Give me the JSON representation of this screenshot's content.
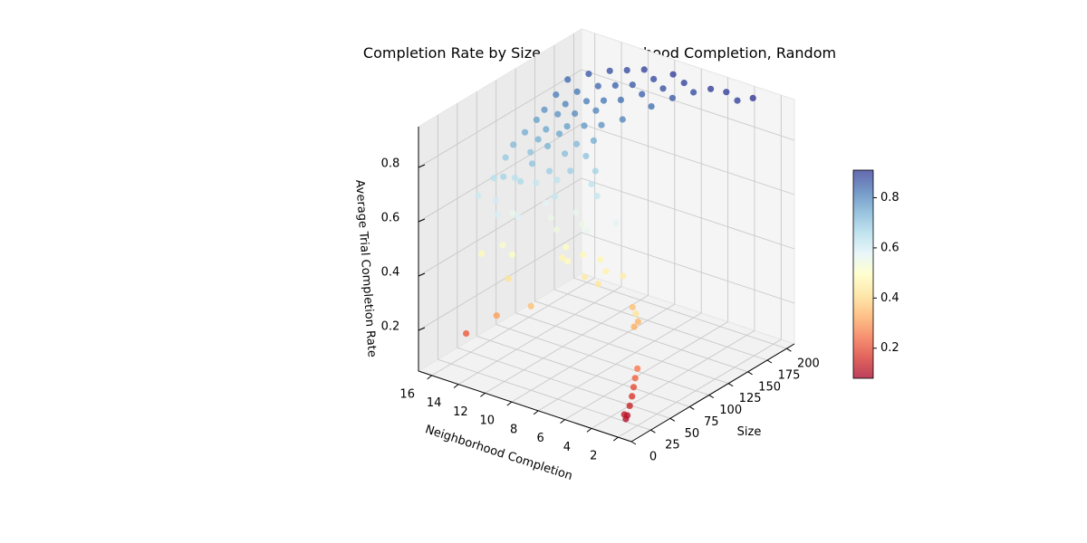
{
  "chart_data": {
    "type": "scatter3d",
    "title": "Completion Rate by Size and Neighborhood Completion, Random",
    "xlabel": "Neighborhood Completion",
    "ylabel": "Size",
    "zlabel": "Average Trial Completion Rate",
    "xlim": [
      1,
      17
    ],
    "ylim": [
      0,
      210
    ],
    "zlim": [
      0.05,
      0.95
    ],
    "x_ticks": [
      2,
      4,
      6,
      8,
      10,
      12,
      14,
      16
    ],
    "y_ticks": [
      0,
      25,
      50,
      75,
      100,
      125,
      150,
      175,
      200
    ],
    "z_ticks": [
      0.2,
      0.4,
      0.6,
      0.8
    ],
    "x_tick_labels": [
      "2",
      "4",
      "6",
      "8",
      "10",
      "12",
      "14",
      "16"
    ],
    "y_tick_labels": [
      "0",
      "25",
      "50",
      "75",
      "100",
      "125",
      "150",
      "175",
      "200"
    ],
    "z_tick_labels": [
      "0.2",
      "0.4",
      "0.6",
      "0.8"
    ],
    "colormap": "RdYlBu",
    "colorbar": {
      "range": [
        0.08,
        0.91
      ],
      "ticks": [
        0.2,
        0.4,
        0.6,
        0.8
      ],
      "tick_labels": [
        "0.2",
        "0.4",
        "0.6",
        "0.8"
      ]
    },
    "grid": true,
    "points": [
      {
        "x": 2,
        "y": 10,
        "z": 0.1
      },
      {
        "x": 2,
        "y": 12,
        "z": 0.11
      },
      {
        "x": 2,
        "y": 8,
        "z": 0.12
      },
      {
        "x": 2,
        "y": 15,
        "z": 0.14
      },
      {
        "x": 2,
        "y": 18,
        "z": 0.17
      },
      {
        "x": 2,
        "y": 20,
        "z": 0.2
      },
      {
        "x": 2,
        "y": 22,
        "z": 0.23
      },
      {
        "x": 2,
        "y": 25,
        "z": 0.26
      },
      {
        "x": 4,
        "y": 60,
        "z": 0.34
      },
      {
        "x": 4,
        "y": 55,
        "z": 0.33
      },
      {
        "x": 5,
        "y": 70,
        "z": 0.36
      },
      {
        "x": 3,
        "y": 40,
        "z": 0.42
      },
      {
        "x": 14,
        "y": 10,
        "z": 0.22
      },
      {
        "x": 12,
        "y": 15,
        "z": 0.31
      },
      {
        "x": 10,
        "y": 25,
        "z": 0.36
      },
      {
        "x": 12,
        "y": 30,
        "z": 0.42
      },
      {
        "x": 7,
        "y": 60,
        "z": 0.43
      },
      {
        "x": 7,
        "y": 70,
        "z": 0.46
      },
      {
        "x": 6,
        "y": 75,
        "z": 0.45
      },
      {
        "x": 8,
        "y": 60,
        "z": 0.44
      },
      {
        "x": 8,
        "y": 80,
        "z": 0.47
      },
      {
        "x": 9,
        "y": 75,
        "z": 0.48
      },
      {
        "x": 10,
        "y": 65,
        "z": 0.47
      },
      {
        "x": 10,
        "y": 70,
        "z": 0.5
      },
      {
        "x": 9,
        "y": 55,
        "z": 0.49
      },
      {
        "x": 14,
        "y": 30,
        "z": 0.48
      },
      {
        "x": 13,
        "y": 40,
        "z": 0.51
      },
      {
        "x": 12,
        "y": 35,
        "z": 0.5
      },
      {
        "x": 10,
        "y": 90,
        "z": 0.55
      },
      {
        "x": 9,
        "y": 80,
        "z": 0.56
      },
      {
        "x": 11,
        "y": 100,
        "z": 0.56
      },
      {
        "x": 12,
        "y": 85,
        "z": 0.55
      },
      {
        "x": 8,
        "y": 100,
        "z": 0.57
      },
      {
        "x": 13,
        "y": 95,
        "z": 0.57
      },
      {
        "x": 11,
        "y": 75,
        "z": 0.54
      },
      {
        "x": 14,
        "y": 70,
        "z": 0.56
      },
      {
        "x": 13,
        "y": 60,
        "z": 0.58
      },
      {
        "x": 14,
        "y": 50,
        "z": 0.59
      },
      {
        "x": 15,
        "y": 65,
        "z": 0.6
      },
      {
        "x": 16,
        "y": 60,
        "z": 0.61
      },
      {
        "x": 12,
        "y": 90,
        "z": 0.62
      },
      {
        "x": 10,
        "y": 110,
        "z": 0.62
      },
      {
        "x": 11,
        "y": 120,
        "z": 0.63
      },
      {
        "x": 13,
        "y": 110,
        "z": 0.63
      },
      {
        "x": 14,
        "y": 100,
        "z": 0.62
      },
      {
        "x": 15,
        "y": 90,
        "z": 0.64
      },
      {
        "x": 16,
        "y": 80,
        "z": 0.64
      },
      {
        "x": 14,
        "y": 80,
        "z": 0.66
      },
      {
        "x": 15,
        "y": 75,
        "z": 0.67
      },
      {
        "x": 13,
        "y": 100,
        "z": 0.68
      },
      {
        "x": 12,
        "y": 110,
        "z": 0.68
      },
      {
        "x": 16,
        "y": 95,
        "z": 0.69
      },
      {
        "x": 11,
        "y": 125,
        "z": 0.67
      },
      {
        "x": 14,
        "y": 95,
        "z": 0.7
      },
      {
        "x": 15,
        "y": 110,
        "z": 0.7
      },
      {
        "x": 13,
        "y": 120,
        "z": 0.71
      },
      {
        "x": 12,
        "y": 130,
        "z": 0.7
      },
      {
        "x": 16,
        "y": 105,
        "z": 0.72
      },
      {
        "x": 14,
        "y": 115,
        "z": 0.73
      },
      {
        "x": 15,
        "y": 120,
        "z": 0.73
      },
      {
        "x": 13,
        "y": 135,
        "z": 0.72
      },
      {
        "x": 16,
        "y": 120,
        "z": 0.74
      },
      {
        "x": 14,
        "y": 130,
        "z": 0.75
      },
      {
        "x": 15,
        "y": 130,
        "z": 0.75
      },
      {
        "x": 12,
        "y": 140,
        "z": 0.74
      },
      {
        "x": 16,
        "y": 135,
        "z": 0.76
      },
      {
        "x": 14,
        "y": 140,
        "z": 0.76
      },
      {
        "x": 13,
        "y": 145,
        "z": 0.77
      },
      {
        "x": 15,
        "y": 145,
        "z": 0.78
      },
      {
        "x": 16,
        "y": 145,
        "z": 0.78
      },
      {
        "x": 14,
        "y": 150,
        "z": 0.79
      },
      {
        "x": 12,
        "y": 150,
        "z": 0.78
      },
      {
        "x": 15,
        "y": 155,
        "z": 0.8
      },
      {
        "x": 13,
        "y": 160,
        "z": 0.8
      },
      {
        "x": 16,
        "y": 160,
        "z": 0.81
      },
      {
        "x": 11,
        "y": 160,
        "z": 0.8
      },
      {
        "x": 14,
        "y": 165,
        "z": 0.81
      },
      {
        "x": 15,
        "y": 170,
        "z": 0.82
      },
      {
        "x": 13,
        "y": 170,
        "z": 0.82
      },
      {
        "x": 12,
        "y": 175,
        "z": 0.83
      },
      {
        "x": 16,
        "y": 175,
        "z": 0.84
      },
      {
        "x": 14,
        "y": 180,
        "z": 0.84
      },
      {
        "x": 10,
        "y": 180,
        "z": 0.83
      },
      {
        "x": 11,
        "y": 185,
        "z": 0.85
      },
      {
        "x": 13,
        "y": 185,
        "z": 0.85
      },
      {
        "x": 15,
        "y": 185,
        "z": 0.86
      },
      {
        "x": 12,
        "y": 190,
        "z": 0.86
      },
      {
        "x": 9,
        "y": 190,
        "z": 0.86
      },
      {
        "x": 10,
        "y": 195,
        "z": 0.87
      },
      {
        "x": 14,
        "y": 195,
        "z": 0.87
      },
      {
        "x": 11,
        "y": 200,
        "z": 0.88
      },
      {
        "x": 8,
        "y": 200,
        "z": 0.88
      },
      {
        "x": 13,
        "y": 200,
        "z": 0.88
      },
      {
        "x": 9,
        "y": 205,
        "z": 0.89
      },
      {
        "x": 7,
        "y": 205,
        "z": 0.9
      },
      {
        "x": 12,
        "y": 205,
        "z": 0.89
      },
      {
        "x": 10,
        "y": 208,
        "z": 0.9
      },
      {
        "x": 6,
        "y": 208,
        "z": 0.9
      },
      {
        "x": 5,
        "y": 205,
        "z": 0.89
      },
      {
        "x": 4,
        "y": 208,
        "z": 0.91
      }
    ]
  }
}
